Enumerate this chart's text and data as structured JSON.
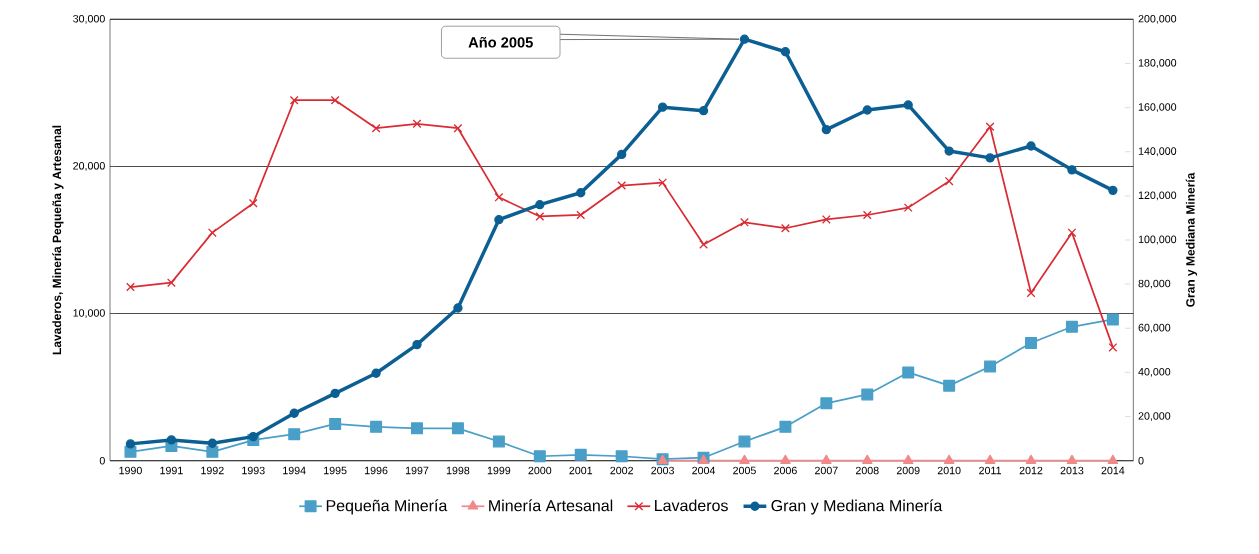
{
  "chart_data": {
    "type": "line",
    "categories": [
      "1990",
      "1991",
      "1992",
      "1993",
      "1994",
      "1995",
      "1996",
      "1997",
      "1998",
      "1999",
      "2000",
      "2001",
      "2002",
      "2003",
      "2004",
      "2005",
      "2006",
      "2007",
      "2008",
      "2009",
      "2010",
      "2011",
      "2012",
      "2013",
      "2014"
    ],
    "ylabel": "Lavaderos, Minería Pequeña y Artesanal",
    "y2label": "Gran y Mediana Minería",
    "ylim": [
      0,
      30000
    ],
    "yticks": [
      {
        "value": 0,
        "label": "0"
      },
      {
        "value": 10000,
        "label": "10,000"
      },
      {
        "value": 20000,
        "label": "20,000"
      },
      {
        "value": 30000,
        "label": "30,000"
      }
    ],
    "y2lim": [
      0,
      200000
    ],
    "y2ticks": [
      {
        "value": 0,
        "label": "0"
      },
      {
        "value": 20000,
        "label": "20,000"
      },
      {
        "value": 40000,
        "label": "40,000"
      },
      {
        "value": 60000,
        "label": "60,000"
      },
      {
        "value": 80000,
        "label": "80,000"
      },
      {
        "value": 100000,
        "label": "100,000"
      },
      {
        "value": 120000,
        "label": "120,000"
      },
      {
        "value": 140000,
        "label": "140,000"
      },
      {
        "value": 160000,
        "label": "160,000"
      },
      {
        "value": 180000,
        "label": "180,000"
      },
      {
        "value": 200000,
        "label": "200,000"
      }
    ],
    "grid": "y",
    "legend": "bottom",
    "annotations": [
      "Año 2005"
    ],
    "series": [
      {
        "name": "Pequeña Minería",
        "color": "#4a9fc8",
        "marker": "square",
        "values": [
          600,
          1000,
          600,
          1400,
          1800,
          2500,
          2300,
          2200,
          2200,
          1300,
          300,
          400,
          300,
          100,
          200,
          1300,
          2300,
          3900,
          4500,
          6000,
          5100,
          6400,
          8000,
          9100,
          9600
        ]
      },
      {
        "name": "Minería Artesanal",
        "color": "#f08a8a",
        "marker": "triangle",
        "values": [
          null,
          null,
          null,
          null,
          null,
          null,
          null,
          null,
          null,
          null,
          null,
          null,
          null,
          0,
          0,
          0,
          0,
          0,
          0,
          0,
          0,
          0,
          0,
          0,
          0
        ]
      },
      {
        "name": "Lavaderos",
        "color": "#d92b33",
        "marker": "cross",
        "values": [
          11800,
          12100,
          15500,
          17500,
          24500,
          24500,
          22600,
          22900,
          22600,
          17900,
          16600,
          16700,
          18700,
          18900,
          14700,
          16200,
          15800,
          16400,
          16700,
          17200,
          19000,
          22700,
          11400,
          15500,
          7700
        ]
      },
      {
        "name": "Gran y Mediana Minería",
        "color": "#0b5f93",
        "marker": "circle",
        "axis": "y2",
        "values": [
          7600,
          9400,
          7900,
          10900,
          21500,
          30500,
          39600,
          52600,
          69200,
          109200,
          116000,
          121400,
          138800,
          160200,
          158600,
          191000,
          185300,
          150000,
          158900,
          161200,
          140300,
          137200,
          142600,
          131800,
          122500
        ]
      }
    ]
  }
}
